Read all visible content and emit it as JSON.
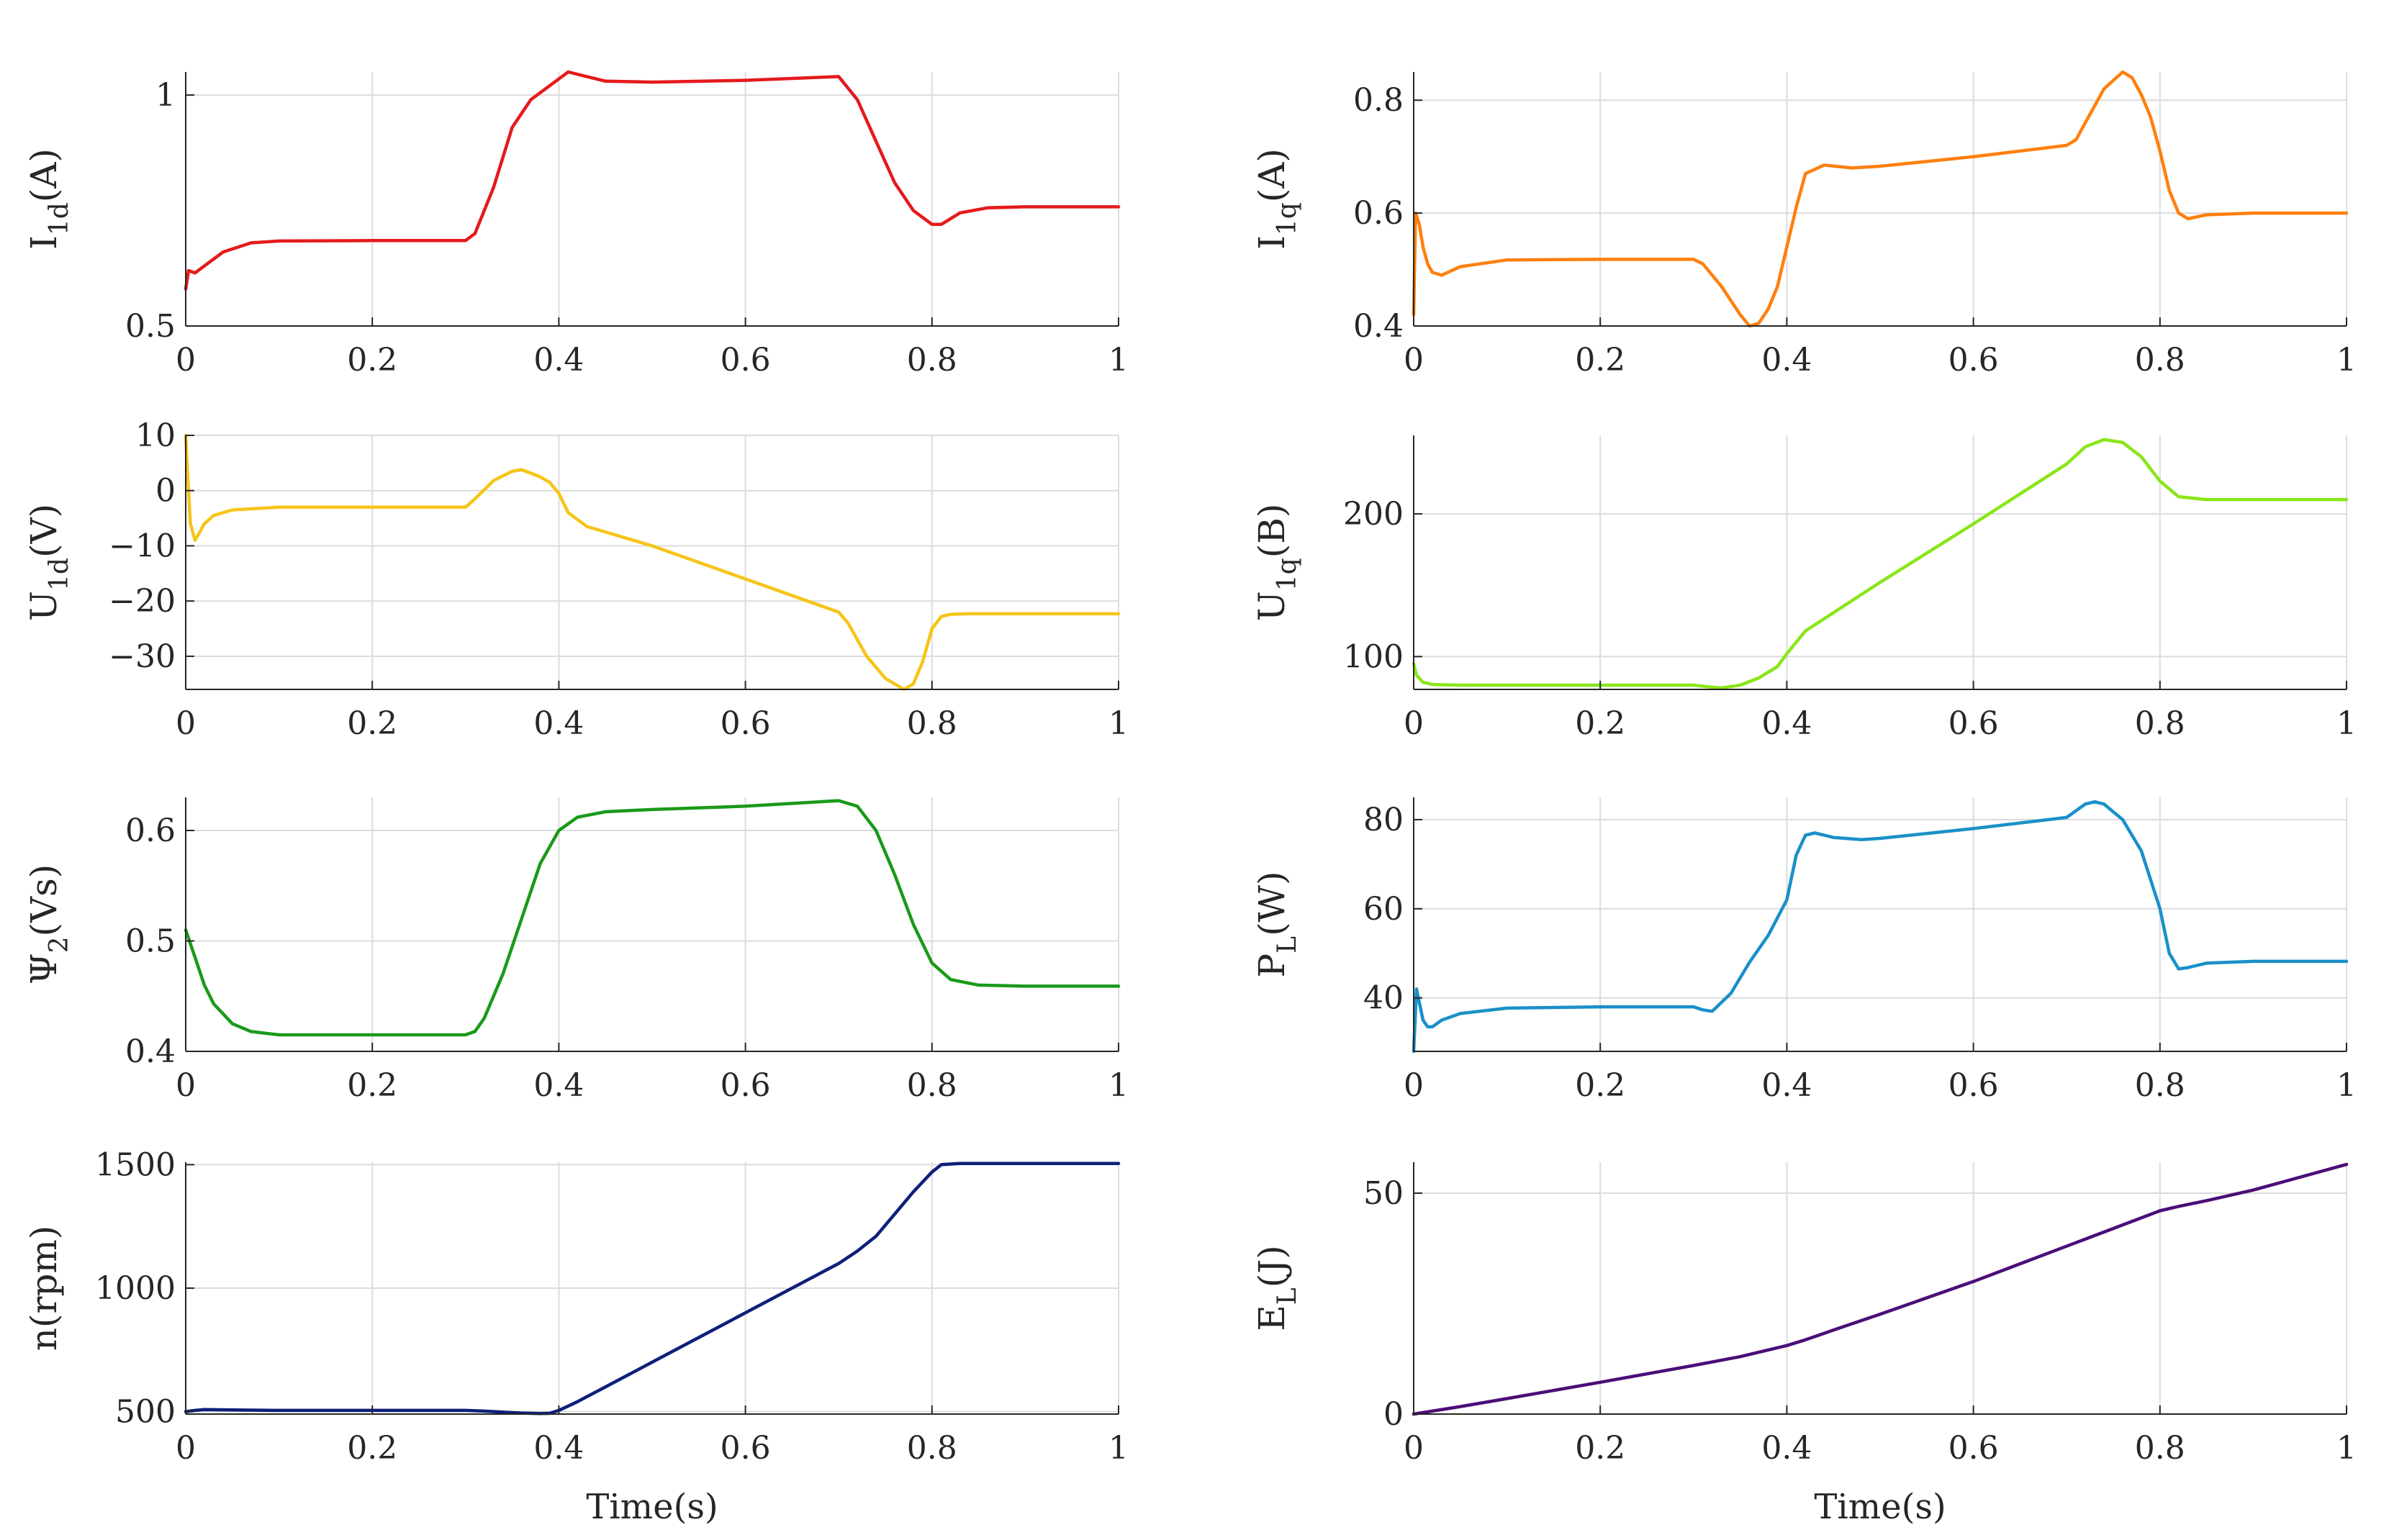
{
  "chart_data": [
    {
      "type": "line",
      "xlabel": "",
      "ylabel": {
        "main": "I",
        "sub": "1d",
        "unit": "(A)"
      },
      "xlim": [
        0,
        1
      ],
      "ylim": [
        0.5,
        1.05
      ],
      "xticks": [
        "0",
        "0.2",
        "0.4",
        "0.6",
        "0.8",
        "1"
      ],
      "yticks": [
        {
          "v": 0.5,
          "label": "0.5"
        },
        {
          "v": 1,
          "label": "1"
        }
      ],
      "grid": true,
      "series": [
        {
          "color": "#e41a1c",
          "x": [
            0,
            0.003,
            0.01,
            0.02,
            0.04,
            0.07,
            0.1,
            0.2,
            0.3,
            0.31,
            0.33,
            0.35,
            0.37,
            0.39,
            0.41,
            0.43,
            0.45,
            0.5,
            0.6,
            0.7,
            0.72,
            0.74,
            0.76,
            0.78,
            0.8,
            0.81,
            0.83,
            0.86,
            0.9,
            1.0
          ],
          "y": [
            0.58,
            0.62,
            0.615,
            0.63,
            0.66,
            0.68,
            0.684,
            0.685,
            0.685,
            0.7,
            0.8,
            0.93,
            0.99,
            1.02,
            1.05,
            1.04,
            1.03,
            1.028,
            1.032,
            1.04,
            0.99,
            0.9,
            0.81,
            0.75,
            0.72,
            0.72,
            0.745,
            0.756,
            0.758,
            0.758
          ]
        }
      ]
    },
    {
      "type": "line",
      "xlabel": "",
      "ylabel": {
        "main": "I",
        "sub": "1q",
        "unit": "(A)"
      },
      "xlim": [
        0,
        1
      ],
      "ylim": [
        0.4,
        0.85
      ],
      "xticks": [
        "0",
        "0.2",
        "0.4",
        "0.6",
        "0.8",
        "1"
      ],
      "yticks": [
        {
          "v": 0.4,
          "label": "0.4"
        },
        {
          "v": 0.6,
          "label": "0.6"
        },
        {
          "v": 0.8,
          "label": "0.8"
        }
      ],
      "grid": true,
      "series": [
        {
          "color": "#ff7f0e",
          "x": [
            0,
            0.002,
            0.006,
            0.01,
            0.015,
            0.02,
            0.03,
            0.05,
            0.1,
            0.2,
            0.3,
            0.31,
            0.33,
            0.35,
            0.36,
            0.37,
            0.38,
            0.39,
            0.4,
            0.41,
            0.42,
            0.44,
            0.47,
            0.5,
            0.6,
            0.7,
            0.71,
            0.72,
            0.74,
            0.76,
            0.77,
            0.78,
            0.79,
            0.8,
            0.81,
            0.82,
            0.83,
            0.85,
            0.9,
            1.0
          ],
          "y": [
            0.42,
            0.6,
            0.58,
            0.54,
            0.51,
            0.495,
            0.49,
            0.505,
            0.517,
            0.518,
            0.518,
            0.51,
            0.47,
            0.42,
            0.4,
            0.405,
            0.43,
            0.47,
            0.54,
            0.61,
            0.67,
            0.685,
            0.68,
            0.683,
            0.7,
            0.72,
            0.73,
            0.76,
            0.82,
            0.85,
            0.84,
            0.81,
            0.77,
            0.71,
            0.64,
            0.6,
            0.59,
            0.597,
            0.6,
            0.6
          ]
        }
      ]
    },
    {
      "type": "line",
      "xlabel": "",
      "ylabel": {
        "main": "U",
        "sub": "1d",
        "unit": "(V)"
      },
      "xlim": [
        0,
        1
      ],
      "ylim": [
        -36,
        10
      ],
      "xticks": [
        "0",
        "0.2",
        "0.4",
        "0.6",
        "0.8",
        "1"
      ],
      "yticks": [
        {
          "v": 10,
          "label": "10"
        },
        {
          "v": 0,
          "label": "0"
        },
        {
          "v": -10,
          "label": "−10"
        },
        {
          "v": -20,
          "label": "−20"
        },
        {
          "v": -30,
          "label": "−30"
        }
      ],
      "grid": true,
      "series": [
        {
          "color": "#f5c518",
          "x": [
            0,
            0.002,
            0.005,
            0.01,
            0.02,
            0.03,
            0.05,
            0.1,
            0.2,
            0.3,
            0.31,
            0.33,
            0.35,
            0.36,
            0.38,
            0.39,
            0.4,
            0.41,
            0.43,
            0.5,
            0.6,
            0.7,
            0.71,
            0.73,
            0.75,
            0.77,
            0.78,
            0.79,
            0.8,
            0.81,
            0.82,
            0.84,
            0.9,
            1.0
          ],
          "y": [
            10,
            3,
            -6,
            -9,
            -6,
            -4.5,
            -3.5,
            -3,
            -3,
            -3,
            -1.5,
            1.8,
            3.5,
            3.8,
            2.5,
            1.5,
            -0.5,
            -4,
            -6.5,
            -10,
            -16,
            -22,
            -24,
            -30,
            -34,
            -36,
            -35,
            -31,
            -25,
            -22.8,
            -22.4,
            -22.3,
            -22.3,
            -22.3
          ]
        }
      ]
    },
    {
      "type": "line",
      "xlabel": "",
      "ylabel": {
        "main": "U",
        "sub": "1q",
        "unit": "(B)"
      },
      "xlim": [
        0,
        1
      ],
      "ylim": [
        77,
        255
      ],
      "xticks": [
        "0",
        "0.2",
        "0.4",
        "0.6",
        "0.8",
        "1"
      ],
      "yticks": [
        {
          "v": 100,
          "label": "100"
        },
        {
          "v": 200,
          "label": "200"
        }
      ],
      "grid": true,
      "series": [
        {
          "color": "#8ae619",
          "x": [
            0,
            0.003,
            0.01,
            0.02,
            0.05,
            0.1,
            0.2,
            0.3,
            0.32,
            0.33,
            0.35,
            0.37,
            0.39,
            0.4,
            0.42,
            0.5,
            0.6,
            0.7,
            0.72,
            0.74,
            0.76,
            0.78,
            0.8,
            0.82,
            0.85,
            0.9,
            1.0
          ],
          "y": [
            95,
            87,
            82,
            80.5,
            80,
            80,
            80,
            80,
            78.5,
            78,
            80,
            85,
            93,
            102,
            118,
            152,
            193,
            235,
            247,
            252,
            250,
            240,
            223,
            212,
            210,
            210,
            210
          ]
        }
      ]
    },
    {
      "type": "line",
      "xlabel": "",
      "ylabel": {
        "main": "Ψ",
        "sub": "2",
        "unit": "(Vs)"
      },
      "xlim": [
        0,
        1
      ],
      "ylim": [
        0.4,
        0.63
      ],
      "xticks": [
        "0",
        "0.2",
        "0.4",
        "0.6",
        "0.8",
        "1"
      ],
      "yticks": [
        {
          "v": 0.4,
          "label": "0.4"
        },
        {
          "v": 0.5,
          "label": "0.5"
        },
        {
          "v": 0.6,
          "label": "0.6"
        }
      ],
      "grid": true,
      "series": [
        {
          "color": "#1a9a1a",
          "x": [
            0,
            0.01,
            0.02,
            0.03,
            0.05,
            0.07,
            0.1,
            0.2,
            0.3,
            0.31,
            0.32,
            0.34,
            0.36,
            0.38,
            0.4,
            0.42,
            0.45,
            0.5,
            0.6,
            0.7,
            0.72,
            0.74,
            0.76,
            0.78,
            0.8,
            0.82,
            0.85,
            0.9,
            1.0
          ],
          "y": [
            0.51,
            0.485,
            0.46,
            0.443,
            0.425,
            0.418,
            0.415,
            0.415,
            0.415,
            0.418,
            0.43,
            0.47,
            0.52,
            0.57,
            0.6,
            0.612,
            0.617,
            0.619,
            0.622,
            0.627,
            0.622,
            0.6,
            0.56,
            0.515,
            0.48,
            0.465,
            0.46,
            0.459,
            0.459
          ]
        }
      ]
    },
    {
      "type": "line",
      "xlabel": "",
      "ylabel": {
        "main": "P",
        "sub": "L",
        "unit": "(W)"
      },
      "xlim": [
        0,
        1
      ],
      "ylim": [
        28,
        85
      ],
      "xticks": [
        "0",
        "0.2",
        "0.4",
        "0.6",
        "0.8",
        "1"
      ],
      "yticks": [
        {
          "v": 40,
          "label": "40"
        },
        {
          "v": 60,
          "label": "60"
        },
        {
          "v": 80,
          "label": "80"
        }
      ],
      "grid": true,
      "series": [
        {
          "color": "#1a90c8",
          "x": [
            0,
            0.003,
            0.006,
            0.01,
            0.015,
            0.02,
            0.03,
            0.05,
            0.1,
            0.2,
            0.3,
            0.31,
            0.32,
            0.34,
            0.36,
            0.38,
            0.4,
            0.41,
            0.42,
            0.43,
            0.45,
            0.48,
            0.5,
            0.6,
            0.7,
            0.71,
            0.72,
            0.73,
            0.74,
            0.76,
            0.78,
            0.8,
            0.81,
            0.82,
            0.83,
            0.85,
            0.9,
            1.0
          ],
          "y": [
            28,
            42,
            39,
            35,
            33.5,
            33.5,
            35,
            36.5,
            37.7,
            38,
            38,
            37.3,
            37,
            41,
            48,
            54,
            62,
            72,
            76.5,
            77,
            76,
            75.5,
            75.8,
            78,
            80.5,
            82,
            83.5,
            84,
            83.5,
            80,
            73,
            60,
            50,
            46.5,
            46.8,
            47.8,
            48.2,
            48.2
          ]
        }
      ]
    },
    {
      "type": "line",
      "xlabel": "Time(s)",
      "ylabel": {
        "main": "n(rpm)",
        "sub": "",
        "unit": ""
      },
      "xlim": [
        0,
        1
      ],
      "ylim": [
        490,
        1510
      ],
      "xticks": [
        "0",
        "0.2",
        "0.4",
        "0.6",
        "0.8",
        "1"
      ],
      "yticks": [
        {
          "v": 500,
          "label": "500"
        },
        {
          "v": 1000,
          "label": "1000"
        },
        {
          "v": 1500,
          "label": "1500"
        }
      ],
      "grid": true,
      "series": [
        {
          "color": "#0e1f7a",
          "x": [
            0,
            0.01,
            0.02,
            0.05,
            0.1,
            0.2,
            0.3,
            0.32,
            0.34,
            0.36,
            0.38,
            0.39,
            0.4,
            0.42,
            0.45,
            0.5,
            0.6,
            0.7,
            0.72,
            0.74,
            0.76,
            0.78,
            0.8,
            0.81,
            0.83,
            0.9,
            1.0
          ],
          "y": [
            500,
            505,
            508,
            507,
            505,
            505,
            505,
            502,
            498,
            494,
            492,
            493,
            505,
            540,
            600,
            700,
            900,
            1100,
            1150,
            1210,
            1300,
            1390,
            1470,
            1500,
            1505,
            1505,
            1505
          ]
        }
      ]
    },
    {
      "type": "line",
      "xlabel": "Time(s)",
      "ylabel": {
        "main": "E",
        "sub": "L",
        "unit": "(J)"
      },
      "xlim": [
        0,
        1
      ],
      "ylim": [
        0,
        57
      ],
      "xticks": [
        "0",
        "0.2",
        "0.4",
        "0.6",
        "0.8",
        "1"
      ],
      "yticks": [
        {
          "v": 0,
          "label": "0"
        },
        {
          "v": 50,
          "label": "50"
        }
      ],
      "grid": true,
      "series": [
        {
          "color": "#4b0e78",
          "x": [
            0,
            0.05,
            0.1,
            0.2,
            0.3,
            0.35,
            0.4,
            0.42,
            0.45,
            0.5,
            0.6,
            0.7,
            0.75,
            0.8,
            0.82,
            0.85,
            0.9,
            1.0
          ],
          "y": [
            0,
            1.7,
            3.5,
            7.2,
            11,
            13,
            15.5,
            16.8,
            19,
            22.6,
            30,
            38,
            42,
            46,
            47,
            48.3,
            50.7,
            56.5
          ]
        }
      ]
    }
  ]
}
